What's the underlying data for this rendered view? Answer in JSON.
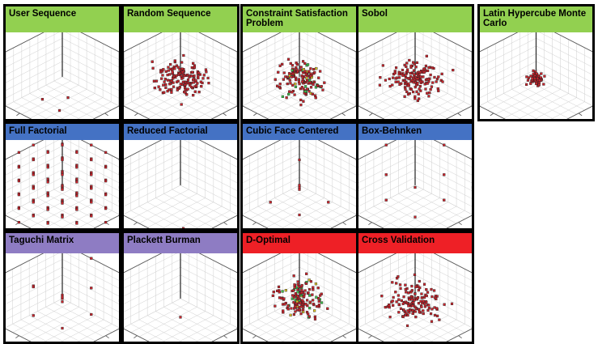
{
  "colors": {
    "sampling": "#92d050",
    "factorial": "#4472c4",
    "orthogonal": "#8e7cc3",
    "optimal": "#ee2026",
    "border": "#000000"
  },
  "methods": [
    {
      "id": "user-sequence",
      "title": "User Sequence",
      "group": "sampling",
      "pattern": "few"
    },
    {
      "id": "random-sequence",
      "title": "Random Sequence",
      "group": "sampling",
      "pattern": "cloud-dense"
    },
    {
      "id": "constraint-satisfaction",
      "title": "Constraint Satisfaction Problem",
      "group": "sampling",
      "pattern": "cloud-mixed"
    },
    {
      "id": "sobol",
      "title": "Sobol",
      "group": "sampling",
      "pattern": "cloud-dense"
    },
    {
      "id": "latin-hypercube",
      "title": "Latin Hypercube Monte Carlo",
      "group": "sampling",
      "pattern": "cloud-small"
    },
    {
      "id": "full-factorial",
      "title": "Full Factorial",
      "group": "factorial",
      "pattern": "lattice"
    },
    {
      "id": "reduced-factorial",
      "title": "Reduced Factorial",
      "group": "factorial",
      "pattern": "few-corners"
    },
    {
      "id": "cubic-face-centered",
      "title": "Cubic Face Centered",
      "group": "factorial",
      "pattern": "faces"
    },
    {
      "id": "box-behnken",
      "title": "Box-Behnken",
      "group": "factorial",
      "pattern": "edges"
    },
    {
      "id": "taguchi-matrix",
      "title": "Taguchi Matrix",
      "group": "orthogonal",
      "pattern": "taguchi"
    },
    {
      "id": "plackett-burman",
      "title": "Plackett Burman",
      "group": "orthogonal",
      "pattern": "pb"
    },
    {
      "id": "d-optimal",
      "title": "D-Optimal",
      "group": "optimal",
      "pattern": "cloud-mixed"
    },
    {
      "id": "cross-validation",
      "title": "Cross Validation",
      "group": "optimal",
      "pattern": "cloud-dense"
    }
  ]
}
